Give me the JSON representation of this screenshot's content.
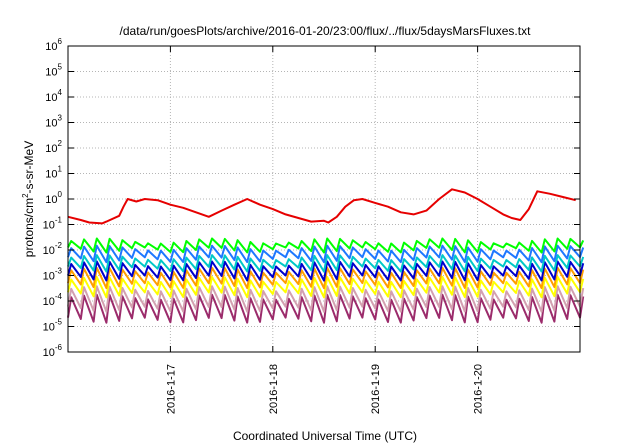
{
  "chart_data": {
    "type": "line",
    "title": "/data/run/goesPlots/archive/2016-01-20/23:00/flux/../flux/5daysMarsFluxes.txt",
    "xlabel": "Coordinated Universal Time (UTC)",
    "ylabel": {
      "before": "protons/cm",
      "sup": "2",
      "after": "-s-sr-MeV"
    },
    "yscale": "log",
    "ylim": [
      1e-06,
      1000000.0
    ],
    "xlim": [
      "2016-01-16 00:00",
      "2016-01-21 00:00"
    ],
    "grid": true,
    "legend": "none",
    "yticks": [
      {
        "value": 1e-06,
        "base": "10",
        "exp": "-6"
      },
      {
        "value": 1e-05,
        "base": "10",
        "exp": "-5"
      },
      {
        "value": 0.0001,
        "base": "10",
        "exp": "-4"
      },
      {
        "value": 0.001,
        "base": "10",
        "exp": "-3"
      },
      {
        "value": 0.01,
        "base": "10",
        "exp": "-2"
      },
      {
        "value": 0.1,
        "base": "10",
        "exp": "-1"
      },
      {
        "value": 1.0,
        "base": "10",
        "exp": "0"
      },
      {
        "value": 10.0,
        "base": "10",
        "exp": "1"
      },
      {
        "value": 100.0,
        "base": "10",
        "exp": "2"
      },
      {
        "value": 1000.0,
        "base": "10",
        "exp": "3"
      },
      {
        "value": 10000.0,
        "base": "10",
        "exp": "4"
      },
      {
        "value": 100000.0,
        "base": "10",
        "exp": "5"
      },
      {
        "value": 1000000.0,
        "base": "10",
        "exp": "6"
      }
    ],
    "xticks": [
      {
        "value": "2016-01-17 00:00",
        "label": "2016-1-17"
      },
      {
        "value": "2016-01-18 00:00",
        "label": "2016-1-18"
      },
      {
        "value": "2016-01-19 00:00",
        "label": "2016-1-19"
      },
      {
        "value": "2016-01-20 00:00",
        "label": "2016-1-20"
      }
    ],
    "series": [
      {
        "color": "#e60000",
        "x": [
          "2016-01-16 00:00",
          "2016-01-16 03:00",
          "2016-01-16 05:00",
          "2016-01-16 08:00",
          "2016-01-16 09:00",
          "2016-01-16 12:00",
          "2016-01-16 13:00",
          "2016-01-16 14:00",
          "2016-01-16 16:00",
          "2016-01-16 18:00",
          "2016-01-16 21:00",
          "2016-01-17 00:00",
          "2016-01-17 03:00",
          "2016-01-17 06:00",
          "2016-01-17 09:00",
          "2016-01-17 12:00",
          "2016-01-17 15:00",
          "2016-01-17 18:00",
          "2016-01-17 21:00",
          "2016-01-18 00:00",
          "2016-01-18 03:00",
          "2016-01-18 06:00",
          "2016-01-18 09:00",
          "2016-01-18 12:00",
          "2016-01-18 13:00",
          "2016-01-18 15:00",
          "2016-01-18 17:00",
          "2016-01-18 19:00",
          "2016-01-18 21:00",
          "2016-01-19 00:00",
          "2016-01-19 03:00",
          "2016-01-19 06:00",
          "2016-01-19 09:00",
          "2016-01-19 12:00",
          "2016-01-19 15:00",
          "2016-01-19 18:00",
          "2016-01-19 21:00",
          "2016-01-20 00:00",
          "2016-01-20 03:00",
          "2016-01-20 06:00",
          "2016-01-20 08:00",
          "2016-01-20 10:00",
          "2016-01-20 12:00",
          "2016-01-20 14:00",
          "2016-01-20 17:00",
          "2016-01-20 20:00",
          "2016-01-20 23:00"
        ],
        "y": [
          0.2,
          0.15,
          0.12,
          0.11,
          0.13,
          0.22,
          0.5,
          1.0,
          0.8,
          1.0,
          0.9,
          0.6,
          0.45,
          0.3,
          0.2,
          0.35,
          0.6,
          1.0,
          0.6,
          0.4,
          0.25,
          0.18,
          0.13,
          0.14,
          0.12,
          0.2,
          0.5,
          0.9,
          1.0,
          0.7,
          0.5,
          0.3,
          0.25,
          0.35,
          1.0,
          2.4,
          1.8,
          1.0,
          0.5,
          0.25,
          0.18,
          0.15,
          0.4,
          2.0,
          1.6,
          1.2,
          0.9
        ]
      },
      {
        "color": "#00ff00",
        "mean": 0.015,
        "spread": 0.35
      },
      {
        "color": "#1e78ff",
        "mean": 0.007,
        "spread": 0.45
      },
      {
        "color": "#00c8c8",
        "mean": 0.003,
        "spread": 0.45
      },
      {
        "color": "#0000cc",
        "mean": 0.0015,
        "spread": 0.55
      },
      {
        "color": "#ff9f00",
        "mean": 0.0008,
        "spread": 0.6
      },
      {
        "color": "#ffff00",
        "mean": 0.00035,
        "spread": 0.6
      },
      {
        "color": "#d3a0b0",
        "mean": 0.00012,
        "spread": 0.8
      },
      {
        "color": "#9b2b6b",
        "mean": 5e-05,
        "spread": 0.9
      }
    ]
  }
}
